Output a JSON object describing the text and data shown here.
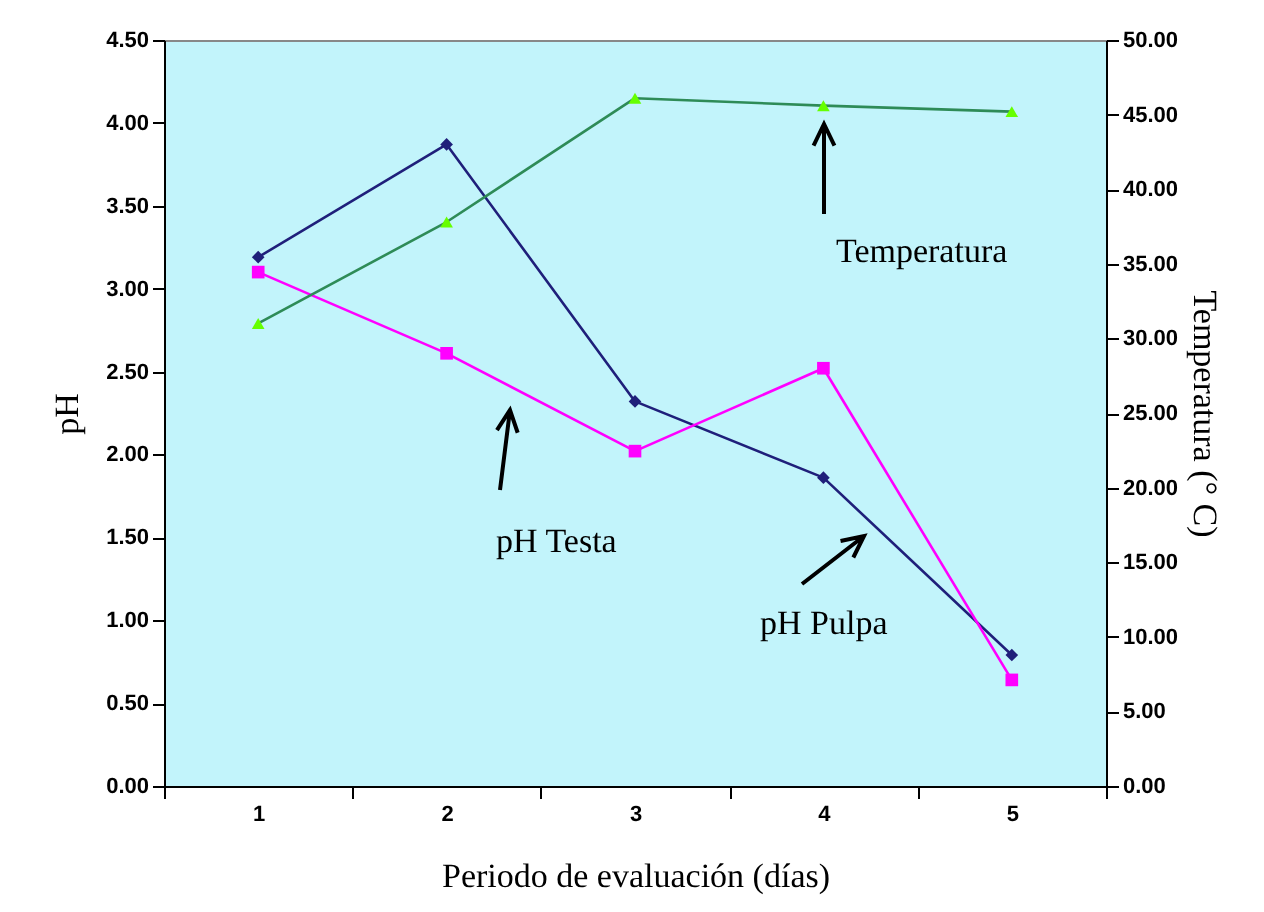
{
  "chart_data": {
    "type": "line",
    "xlabel": "Periodo de evaluación (días)",
    "ylabel": "pH",
    "y2label": "Temperatura  (° C)",
    "categories": [
      "1",
      "2",
      "3",
      "4",
      "5"
    ],
    "series": [
      {
        "name": "pH Pulpa",
        "color": "#1f1f7a",
        "marker": "diamond",
        "values": [
          3.19,
          3.87,
          2.32,
          1.86,
          0.79
        ]
      },
      {
        "name": "pH Testa",
        "color": "#ff00ff",
        "marker": "square",
        "values": [
          3.1,
          2.61,
          2.02,
          2.52,
          0.64
        ]
      },
      {
        "name": "Temperatura",
        "color": "#2e8b57",
        "marker": "triangle",
        "axis": "y2",
        "values": [
          31.0,
          37.8,
          46.1,
          45.6,
          45.2
        ]
      }
    ],
    "ylim": [
      0,
      4.5
    ],
    "yticks": [
      {
        "value": 0,
        "label": "0.00"
      },
      {
        "value": 0.5,
        "label": "0.50"
      },
      {
        "value": 1,
        "label": "1.00"
      },
      {
        "value": 1.5,
        "label": "1.50"
      },
      {
        "value": 2,
        "label": "2.00"
      },
      {
        "value": 2.5,
        "label": "2.50"
      },
      {
        "value": 3,
        "label": "3.00"
      },
      {
        "value": 3.5,
        "label": "3.50"
      },
      {
        "value": 4,
        "label": "4.00"
      },
      {
        "value": 4.5,
        "label": "4.50"
      }
    ],
    "y2lim": [
      0,
      50
    ],
    "y2ticks": [
      {
        "value": 0,
        "label": "0.00"
      },
      {
        "value": 5,
        "label": "5.00"
      },
      {
        "value": 10,
        "label": "10.00"
      },
      {
        "value": 15,
        "label": "15.00"
      },
      {
        "value": 20,
        "label": "20.00"
      },
      {
        "value": 25,
        "label": "25.00"
      },
      {
        "value": 30,
        "label": "30.00"
      },
      {
        "value": 35,
        "label": "35.00"
      },
      {
        "value": 40,
        "label": "40.00"
      },
      {
        "value": 45,
        "label": "45.00"
      },
      {
        "value": 50,
        "label": "50.00"
      }
    ],
    "grid": false
  }
}
